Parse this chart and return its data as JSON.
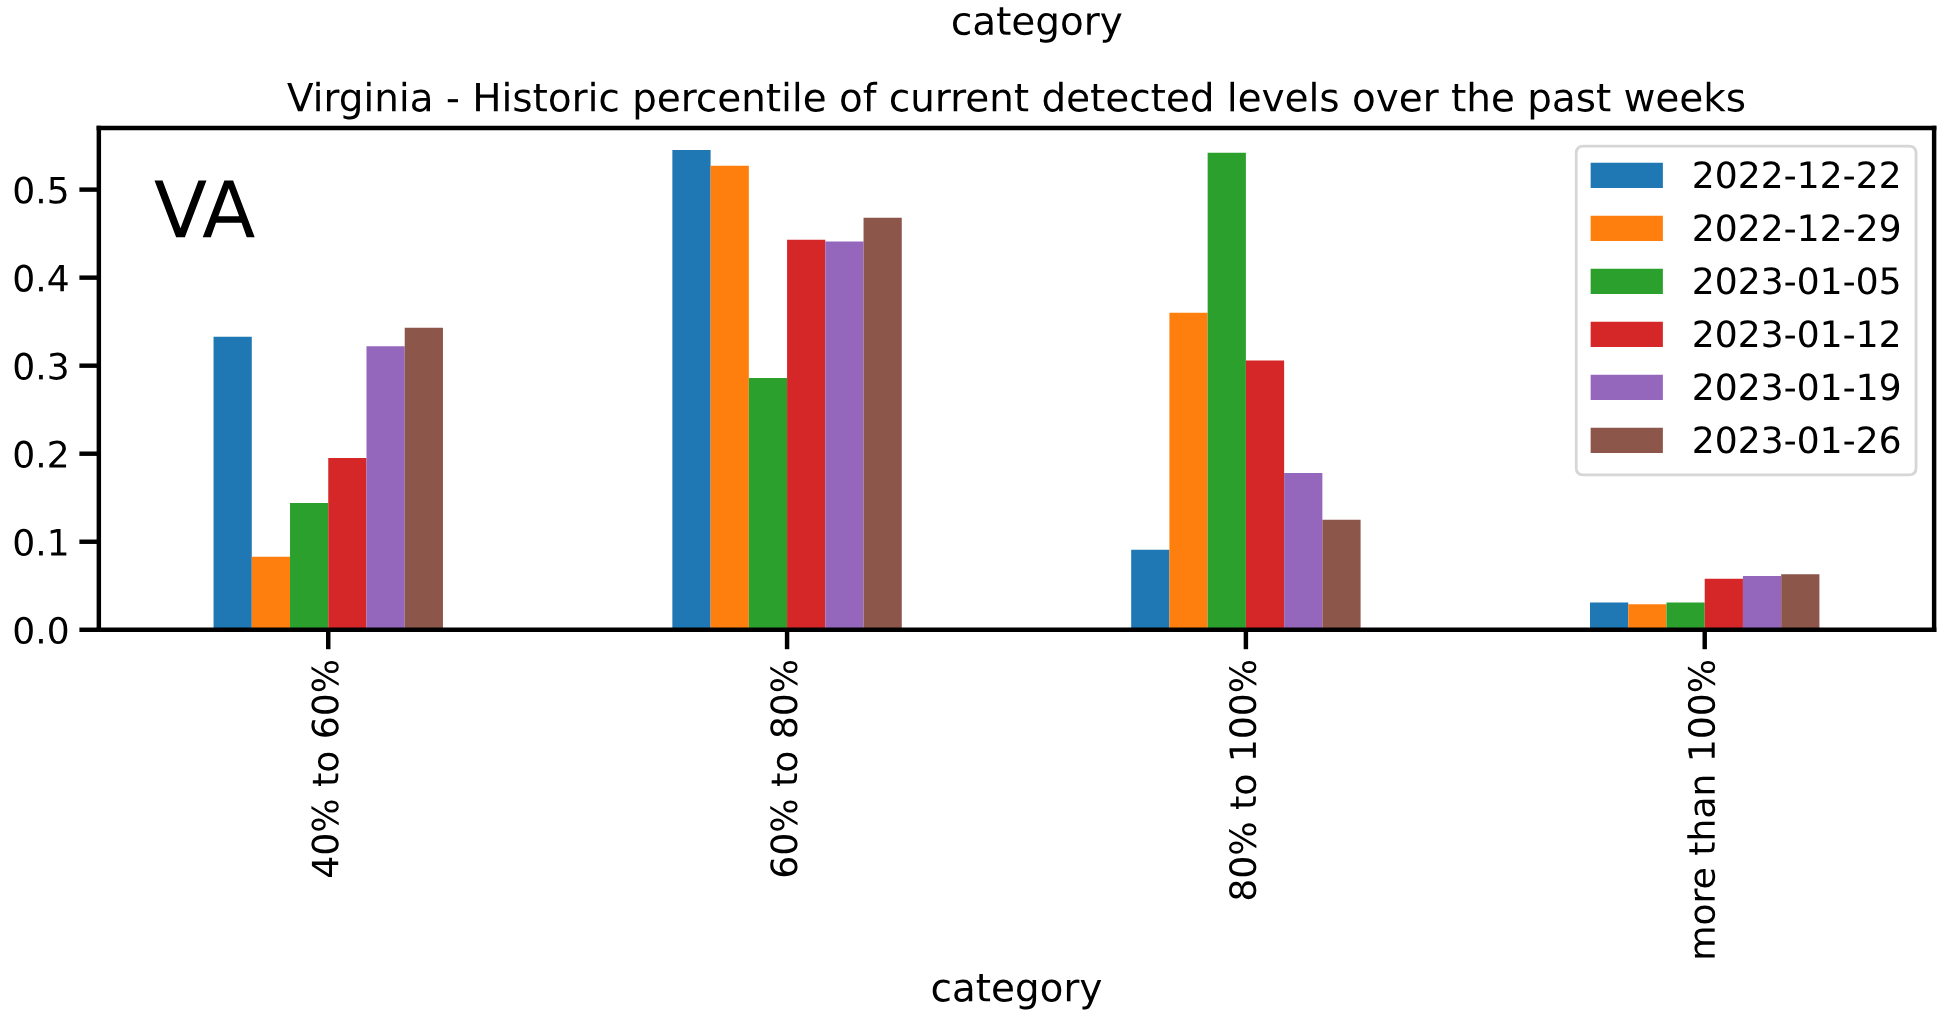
{
  "chart_data": {
    "type": "bar",
    "title": "Virginia - Historic percentile of current detected levels over the past weeks",
    "xlabel": "category",
    "annotations": [
      "category",
      "VA"
    ],
    "categories": [
      "40% to 60%",
      "60% to 80%",
      "80% to 100%",
      "more than 100%"
    ],
    "series": [
      {
        "name": "2022-12-22",
        "color": "#1f77b4",
        "values": [
          0.333,
          0.545,
          0.091,
          0.031
        ]
      },
      {
        "name": "2022-12-29",
        "color": "#ff7f0e",
        "values": [
          0.083,
          0.527,
          0.36,
          0.029
        ]
      },
      {
        "name": "2023-01-05",
        "color": "#2ca02c",
        "values": [
          0.144,
          0.286,
          0.542,
          0.031
        ]
      },
      {
        "name": "2023-01-12",
        "color": "#d62728",
        "values": [
          0.195,
          0.443,
          0.306,
          0.058
        ]
      },
      {
        "name": "2023-01-19",
        "color": "#9467bd",
        "values": [
          0.322,
          0.441,
          0.178,
          0.061
        ]
      },
      {
        "name": "2023-01-26",
        "color": "#8c564b",
        "values": [
          0.343,
          0.468,
          0.125,
          0.063
        ]
      }
    ],
    "ylim": [
      0,
      0.57
    ],
    "yticks": [
      {
        "value": 0,
        "label": "0.0"
      },
      0.1,
      0.2,
      0.3,
      0.4,
      0.5
    ],
    "grid": false,
    "legend": "top right"
  }
}
